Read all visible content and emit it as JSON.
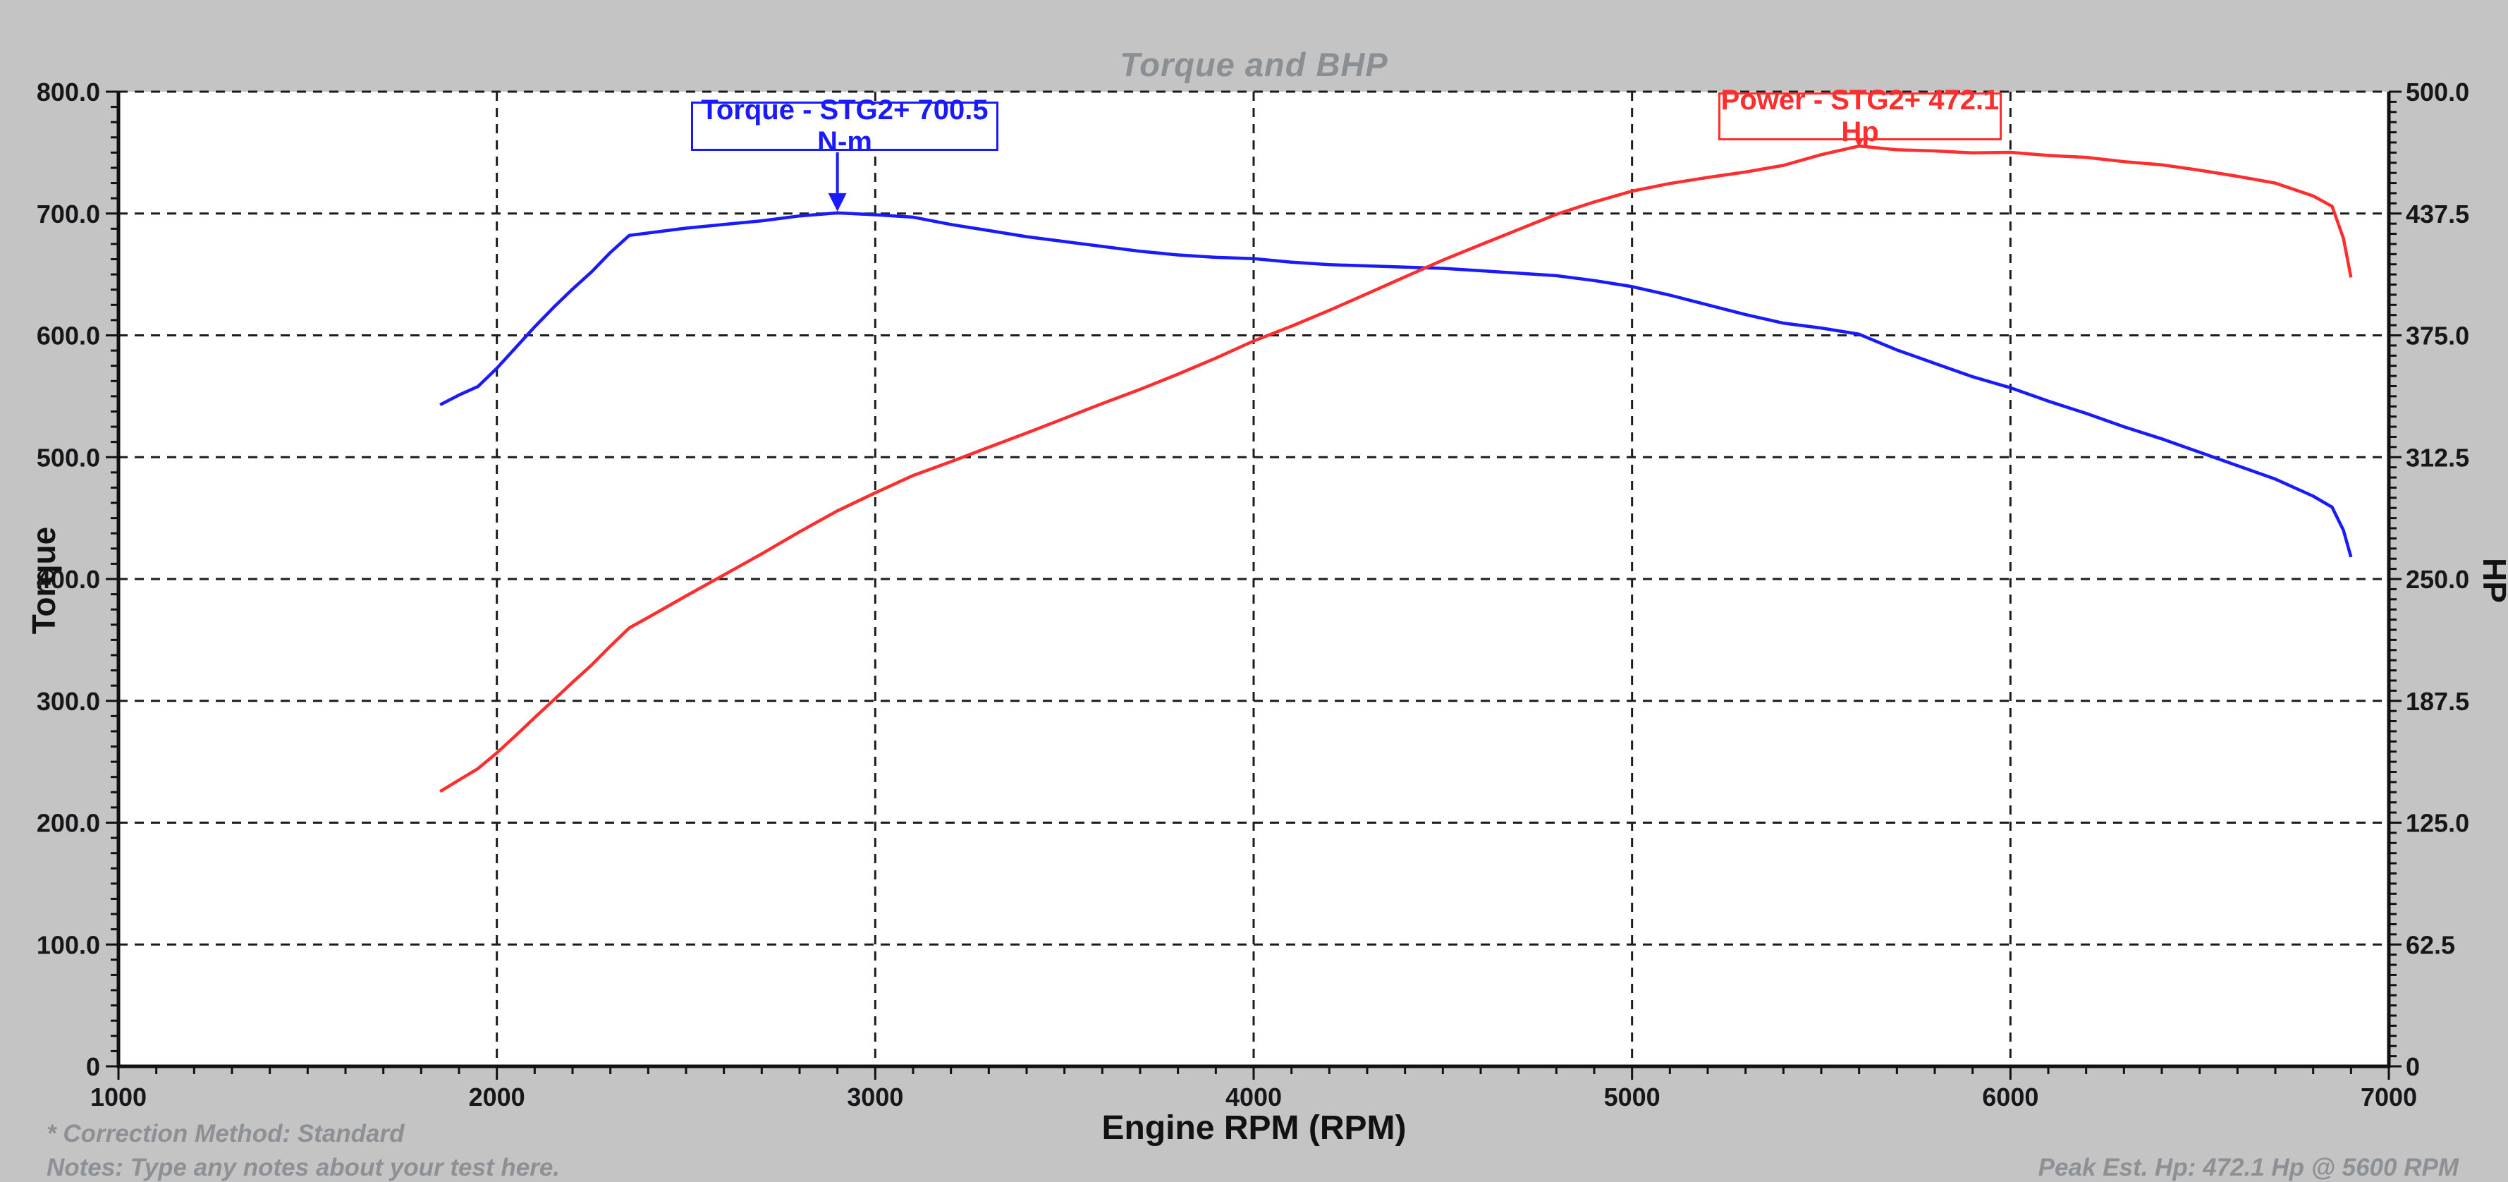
{
  "chart": {
    "title": "Torque and BHP",
    "x_axis": {
      "label": "Engine RPM (RPM)",
      "ticks": [
        "1000",
        "2000",
        "3000",
        "4000",
        "5000",
        "6000",
        "7000"
      ],
      "min": 1000,
      "max": 7000,
      "major_step": 1000,
      "minor_step": 100
    },
    "y_left": {
      "label": "Torque",
      "ticks": [
        "800.0",
        "700.0",
        "600.0",
        "500.0",
        "400.0",
        "300.0",
        "200.0",
        "100.0",
        "0"
      ],
      "min": 0,
      "max": 800,
      "major_step": 100
    },
    "y_right": {
      "label": "HP",
      "ticks": [
        "500.0",
        "437.5",
        "375.0",
        "312.5",
        "250.0",
        "187.5",
        "125.0",
        "62.5",
        "0"
      ],
      "min": 0,
      "max": 500,
      "major_step": 62.5
    },
    "annotations": {
      "torque": "Torque - STG2+ 700.5 N-m",
      "power": "Power - STG2+ 472.1 Hp"
    },
    "footer": {
      "correction": "* Correction Method: Standard",
      "notes": "Notes: Type any notes about your test here.",
      "peak": "Peak Est. Hp: 472.1 Hp @ 5600 RPM"
    },
    "colors": {
      "torque_curve": "#1a1aff",
      "power_curve": "#ff2e2e",
      "background": "#c3c4c3",
      "plot_background": "#ffffff",
      "grid": "#1c1c1c",
      "axis": "#111111",
      "tick_text": "#17171a",
      "muted_text": "#8a8f94",
      "footer_text": "#8d9094"
    }
  },
  "chart_data": {
    "type": "line",
    "title": "Torque and BHP",
    "xlabel": "Engine RPM (RPM)",
    "ylabel_left": "Torque",
    "ylabel_right": "HP",
    "xlim": [
      1000,
      7000
    ],
    "ylim_left": [
      0,
      800
    ],
    "ylim_right": [
      0,
      500
    ],
    "grid": "dashed",
    "x": [
      1850,
      1900,
      1950,
      2000,
      2050,
      2100,
      2150,
      2200,
      2250,
      2300,
      2350,
      2400,
      2500,
      2600,
      2700,
      2800,
      2900,
      3000,
      3100,
      3200,
      3300,
      3400,
      3500,
      3600,
      3700,
      3800,
      3900,
      4000,
      4100,
      4200,
      4300,
      4400,
      4500,
      4600,
      4700,
      4800,
      4900,
      5000,
      5100,
      5200,
      5300,
      5400,
      5500,
      5600,
      5700,
      5800,
      5900,
      6000,
      6100,
      6200,
      6300,
      6400,
      6500,
      6600,
      6700,
      6800,
      6850,
      6880,
      6900
    ],
    "series": [
      {
        "name": "Torque - STG2+ (N-m)",
        "axis": "left",
        "color": "#1a1aff",
        "peak": {
          "value": 700.5,
          "rpm": 2900,
          "unit": "N-m"
        },
        "values": [
          543,
          551,
          558,
          573,
          590,
          607,
          623,
          638,
          652,
          668,
          682,
          684,
          688,
          691,
          694,
          698,
          700.5,
          699,
          697,
          691,
          686,
          681,
          677,
          673,
          669,
          666,
          664,
          663,
          660,
          658,
          657,
          656,
          655,
          653,
          651,
          649,
          645,
          640,
          633,
          625,
          617,
          610,
          606,
          600.9,
          588,
          577,
          566,
          557,
          546,
          536,
          525,
          515,
          504,
          493,
          482,
          468,
          459,
          440,
          418
        ]
      },
      {
        "name": "Power - STG2+ (Hp)",
        "axis": "right",
        "color": "#ff2e2e",
        "peak": {
          "value": 472.1,
          "rpm": 5600,
          "unit": "Hp"
        },
        "values": [
          141,
          146.9,
          152.7,
          160.8,
          169.7,
          178.9,
          187.9,
          197,
          205.8,
          215.6,
          224.9,
          230.3,
          241.3,
          252.1,
          262.9,
          274.2,
          285,
          294.2,
          303.1,
          310.2,
          317.6,
          324.9,
          332.4,
          340,
          347.3,
          355.1,
          363.3,
          372.1,
          379.7,
          387.8,
          396.4,
          405,
          413.6,
          421.5,
          429.3,
          437.1,
          443.4,
          449,
          452.9,
          456,
          458.8,
          462.2,
          467.7,
          472.1,
          470.2,
          469.6,
          468.6,
          468.9,
          467.3,
          466.3,
          464.1,
          462.5,
          459.7,
          456.6,
          453.1,
          446.5,
          441.2,
          424.8,
          404.7
        ]
      }
    ]
  }
}
